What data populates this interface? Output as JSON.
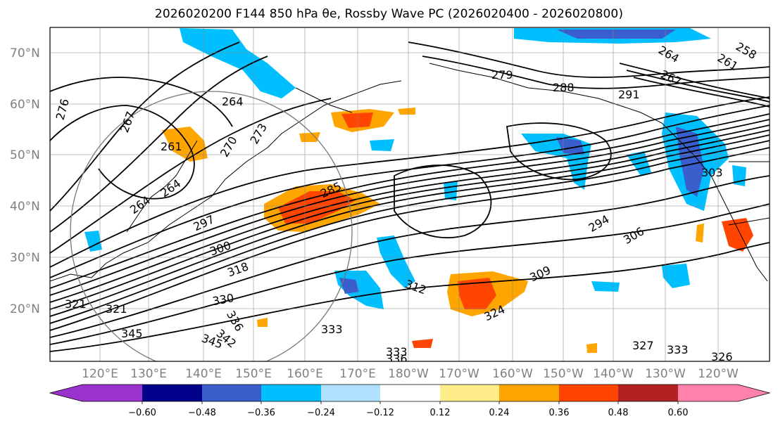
{
  "title": "2026020200 F144 850 hPa θe, Rossby Wave PC (2026020400 - 2026020800)",
  "lat_labels": [
    "70°N",
    "60°N",
    "50°N",
    "40°N",
    "30°N",
    "20°N"
  ],
  "lon_labels": [
    "120°E",
    "130°E",
    "140°E",
    "150°E",
    "160°E",
    "170°E",
    "180°W",
    "170°W",
    "160°W",
    "150°W",
    "140°W",
    "130°W",
    "120°W"
  ],
  "contour_labels": [
    "276",
    "267",
    "261",
    "264",
    "264",
    "264",
    "270",
    "273",
    "285",
    "297",
    "300",
    "318",
    "321",
    "321",
    "330",
    "345",
    "336",
    "342",
    "345",
    "333",
    "333",
    "336",
    "312",
    "309",
    "324",
    "294",
    "306",
    "303",
    "327",
    "333",
    "326",
    "279",
    "288",
    "291",
    "264",
    "267",
    "258",
    "261"
  ],
  "colorbar": {
    "colors": [
      "#9a32cd",
      "#00008b",
      "#3a5fcd",
      "#00bfff",
      "#b0e2ff",
      "#ffffff",
      "#ffec8b",
      "#ffa500",
      "#ff4500",
      "#b22222",
      "#ff82ab"
    ],
    "ticks": [
      "−0.60",
      "−0.48",
      "−0.36",
      "−0.24",
      "−0.12",
      "0.12",
      "0.24",
      "0.36",
      "0.48",
      "0.60"
    ]
  },
  "colors": {
    "positive": "#ffa500",
    "positive_strong": "#ff4500",
    "negative": "#00bfff",
    "negative_strong": "#3a5fcd"
  }
}
